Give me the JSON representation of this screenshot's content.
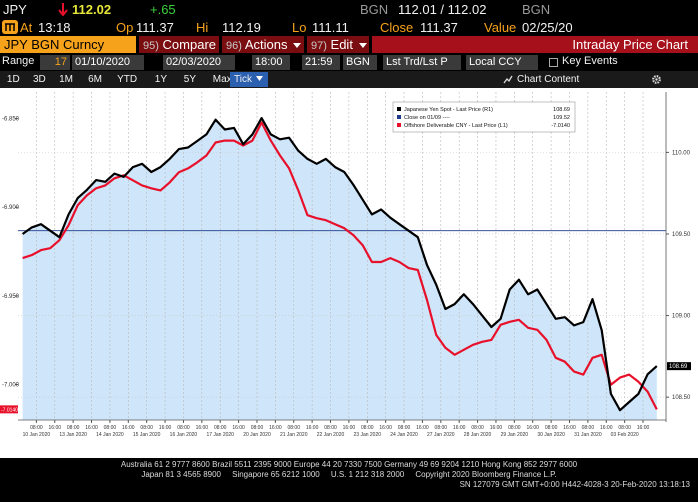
{
  "quote_bar": {
    "ticker": "JPY",
    "last": "112.02",
    "change": "+.65",
    "source": "BGN",
    "bid_ask": "112.01 / 112.02",
    "source_2": "BGN"
  },
  "stats_bar": {
    "at_label": "At",
    "at": "13:18",
    "open_label": "Op",
    "open": "111.37",
    "high_label": "Hi",
    "high": "112.19",
    "low_label": "Lo",
    "low": "111.11",
    "close_label": "Close",
    "close": "111.37",
    "value_label": "Value",
    "value": "02/25/20"
  },
  "menu_bar": {
    "security": "JPY BGN Curncy",
    "buttons": [
      {
        "code": "95)",
        "label": "Compare"
      },
      {
        "code": "96)",
        "label": "Actions"
      },
      {
        "code": "97)",
        "label": "Edit"
      }
    ],
    "title": "Intraday Price Chart"
  },
  "range_bar": {
    "label": "Range",
    "days": "17",
    "start_date": "01/10/2020",
    "end_date": "02/03/2020",
    "start_time": "18:00",
    "end_time": "21:59",
    "source": "BGN",
    "price_type": "Lst Trd/Lst P",
    "currency": "Local CCY",
    "events": "Key Events"
  },
  "period_bar": {
    "periods": [
      "1D",
      "3D",
      "1M",
      "6M",
      "YTD",
      "1Y",
      "5Y",
      "Max"
    ],
    "selected_period": "Tick",
    "chart_content": "Chart Content"
  },
  "chart_data": {
    "type": "line",
    "grid": true,
    "xlim": [
      -0.5,
      70
    ],
    "ylim": [
      -7.02,
      -6.835
    ],
    "y2lim": [
      108.36,
      110.37
    ],
    "yticks": [
      {
        "value": -6.85,
        "label": "-6.850"
      },
      {
        "value": -6.9,
        "label": "-6.900"
      },
      {
        "value": -6.95,
        "label": "-6.950"
      },
      {
        "value": -7.0,
        "label": "-7.000"
      }
    ],
    "y2ticks": [
      {
        "value": 110,
        "label": "110.00"
      },
      {
        "value": 109.5,
        "label": "109.50"
      },
      {
        "value": 109,
        "label": "109.00"
      },
      {
        "value": 108.5,
        "label": "108.50"
      }
    ],
    "xticks": [
      {
        "value": 1.5,
        "label": "08:00"
      },
      {
        "value": 3.5,
        "label": "16:00"
      },
      {
        "value": 5.5,
        "label": "08:00"
      },
      {
        "value": 7.5,
        "label": "16:00"
      },
      {
        "value": 9.5,
        "label": "08:00"
      },
      {
        "value": 11.5,
        "label": "16:00"
      },
      {
        "value": 13.5,
        "label": "08:00"
      },
      {
        "value": 15.5,
        "label": "16:00"
      },
      {
        "value": 17.5,
        "label": "08:00"
      },
      {
        "value": 19.5,
        "label": "16:00"
      },
      {
        "value": 21.5,
        "label": "08:00"
      },
      {
        "value": 23.5,
        "label": "16:00"
      },
      {
        "value": 25.5,
        "label": "08:00"
      },
      {
        "value": 27.5,
        "label": "16:00"
      },
      {
        "value": 29.5,
        "label": "08:00"
      },
      {
        "value": 31.5,
        "label": "16:00"
      },
      {
        "value": 33.5,
        "label": "08:00"
      },
      {
        "value": 35.5,
        "label": "16:00"
      },
      {
        "value": 37.5,
        "label": "08:00"
      },
      {
        "value": 39.5,
        "label": "16:00"
      },
      {
        "value": 41.5,
        "label": "08:00"
      },
      {
        "value": 43.5,
        "label": "16:00"
      },
      {
        "value": 45.5,
        "label": "08:00"
      },
      {
        "value": 47.5,
        "label": "16:00"
      },
      {
        "value": 49.5,
        "label": "08:00"
      },
      {
        "value": 51.5,
        "label": "16:00"
      },
      {
        "value": 53.5,
        "label": "08:00"
      },
      {
        "value": 55.5,
        "label": "16:00"
      },
      {
        "value": 57.5,
        "label": "08:00"
      },
      {
        "value": 59.5,
        "label": "16:00"
      },
      {
        "value": 61.5,
        "label": "08:00"
      },
      {
        "value": 63.5,
        "label": "16:00"
      },
      {
        "value": 65.5,
        "label": "08:00"
      },
      {
        "value": 67.5,
        "label": "16:00"
      }
    ],
    "date_labels": [
      {
        "value": 1.5,
        "label": "10 Jan 2020"
      },
      {
        "value": 5.5,
        "label": "13 Jan 2020"
      },
      {
        "value": 9.5,
        "label": "14 Jan 2020"
      },
      {
        "value": 13.5,
        "label": "15 Jan 2020"
      },
      {
        "value": 17.5,
        "label": "16 Jan 2020"
      },
      {
        "value": 21.5,
        "label": "17 Jan 2020"
      },
      {
        "value": 25.5,
        "label": "20 Jan 2020"
      },
      {
        "value": 29.5,
        "label": "21 Jan 2020"
      },
      {
        "value": 33.5,
        "label": "22 Jan 2020"
      },
      {
        "value": 37.5,
        "label": "23 Jan 2020"
      },
      {
        "value": 41.5,
        "label": "24 Jan 2020"
      },
      {
        "value": 45.5,
        "label": "27 Jan 2020"
      },
      {
        "value": 49.5,
        "label": "28 Jan 2020"
      },
      {
        "value": 53.5,
        "label": "29 Jan 2020"
      },
      {
        "value": 57.5,
        "label": "30 Jan 2020"
      },
      {
        "value": 61.5,
        "label": "31 Jan 2020"
      },
      {
        "value": 65.5,
        "label": "03 Feb 2020"
      }
    ],
    "x": [
      0,
      1,
      2,
      3,
      4,
      5,
      6,
      7,
      8,
      9,
      10,
      11,
      12,
      13,
      14,
      15,
      16,
      17,
      18,
      19,
      20,
      21,
      22,
      23,
      24,
      25,
      26,
      27,
      28,
      29,
      30,
      31,
      32,
      33,
      34,
      35,
      36,
      37,
      38,
      39,
      40,
      41,
      42,
      43,
      44,
      45,
      46,
      47,
      48,
      49,
      50,
      51,
      52,
      53,
      54,
      55,
      56,
      57,
      58,
      59,
      60,
      61,
      62,
      63,
      64,
      65,
      66,
      67,
      68,
      69
    ],
    "series": [
      {
        "name": "Japanese Yen Spot - Last Price (R1)",
        "color": "#000000",
        "axis": "y2",
        "area_color": "#cfe6fa",
        "last": 108.69,
        "values": [
          109.5,
          109.54,
          109.56,
          109.52,
          109.48,
          109.62,
          109.72,
          109.77,
          109.83,
          109.82,
          109.87,
          109.85,
          109.91,
          109.93,
          109.88,
          109.91,
          109.96,
          110.02,
          110.03,
          110.07,
          110.11,
          110.2,
          110.14,
          110.15,
          110.05,
          110.11,
          110.21,
          110.11,
          110.08,
          110.09,
          110.01,
          109.96,
          109.93,
          109.96,
          109.91,
          109.88,
          109.8,
          109.71,
          109.62,
          109.65,
          109.6,
          109.56,
          109.52,
          109.48,
          109.31,
          109.19,
          109.04,
          109.07,
          109.13,
          109.07,
          109.0,
          108.93,
          108.98,
          109.16,
          109.22,
          109.13,
          109.16,
          109.07,
          108.98,
          108.99,
          108.94,
          108.96,
          109.1,
          108.91,
          108.52,
          108.42,
          108.47,
          108.52,
          108.64,
          108.69
        ]
      },
      {
        "name": "Offshore Deliverable CNY - Last Price (L1)",
        "color": "#e8102a",
        "axis": "y",
        "last": {
          "value": -7.014,
          "label": "-7.0140"
        },
        "values": [
          -6.9287,
          -6.927,
          -6.9242,
          -6.9231,
          -6.9186,
          -6.9101,
          -6.8989,
          -6.8933,
          -6.8893,
          -6.8877,
          -6.8837,
          -6.882,
          -6.8848,
          -6.8877,
          -6.8893,
          -6.8905,
          -6.886,
          -6.8803,
          -6.8781,
          -6.8747,
          -6.8708,
          -6.8635,
          -6.8624,
          -6.8624,
          -6.8652,
          -6.8624,
          -6.8522,
          -6.8624,
          -6.8708,
          -6.8781,
          -6.8905,
          -6.9045,
          -6.9062,
          -6.9073,
          -6.9096,
          -6.9118,
          -6.9158,
          -6.9214,
          -6.9309,
          -6.9309,
          -6.9287,
          -6.9309,
          -6.9343,
          -6.9354,
          -6.9523,
          -6.972,
          -6.9793,
          -6.9832,
          -6.9804,
          -6.9776,
          -6.9759,
          -6.9748,
          -6.9663,
          -6.9646,
          -6.9635,
          -6.968,
          -6.9691,
          -6.9748,
          -6.9849,
          -6.9871,
          -6.9927,
          -6.9944,
          -6.9849,
          -6.9832,
          -7.0001,
          -6.9961,
          -6.9944,
          -6.9984,
          -7.004,
          -7.014
        ]
      }
    ],
    "reference_line": {
      "name": "Close on 01/09 ----",
      "value": 109.52,
      "axis": "y2",
      "color": "#1f3a8a"
    }
  },
  "footer": {
    "lines": [
      "Australia 61 2 9777 8600 Brazil 5511 2395 9000 Europe 44 20 7330 7500 Germany 49 69 9204 1210 Hong Kong 852 2977 6000",
      "Japan 81 3 4565 8900     Singapore 65 6212 1000     U.S. 1 212 318 2000     Copyright 2020 Bloomberg Finance L.P.",
      "SN 127079 GMT GMT+0:00 H442-4028-3 20-Feb-2020 13:18:13"
    ]
  }
}
